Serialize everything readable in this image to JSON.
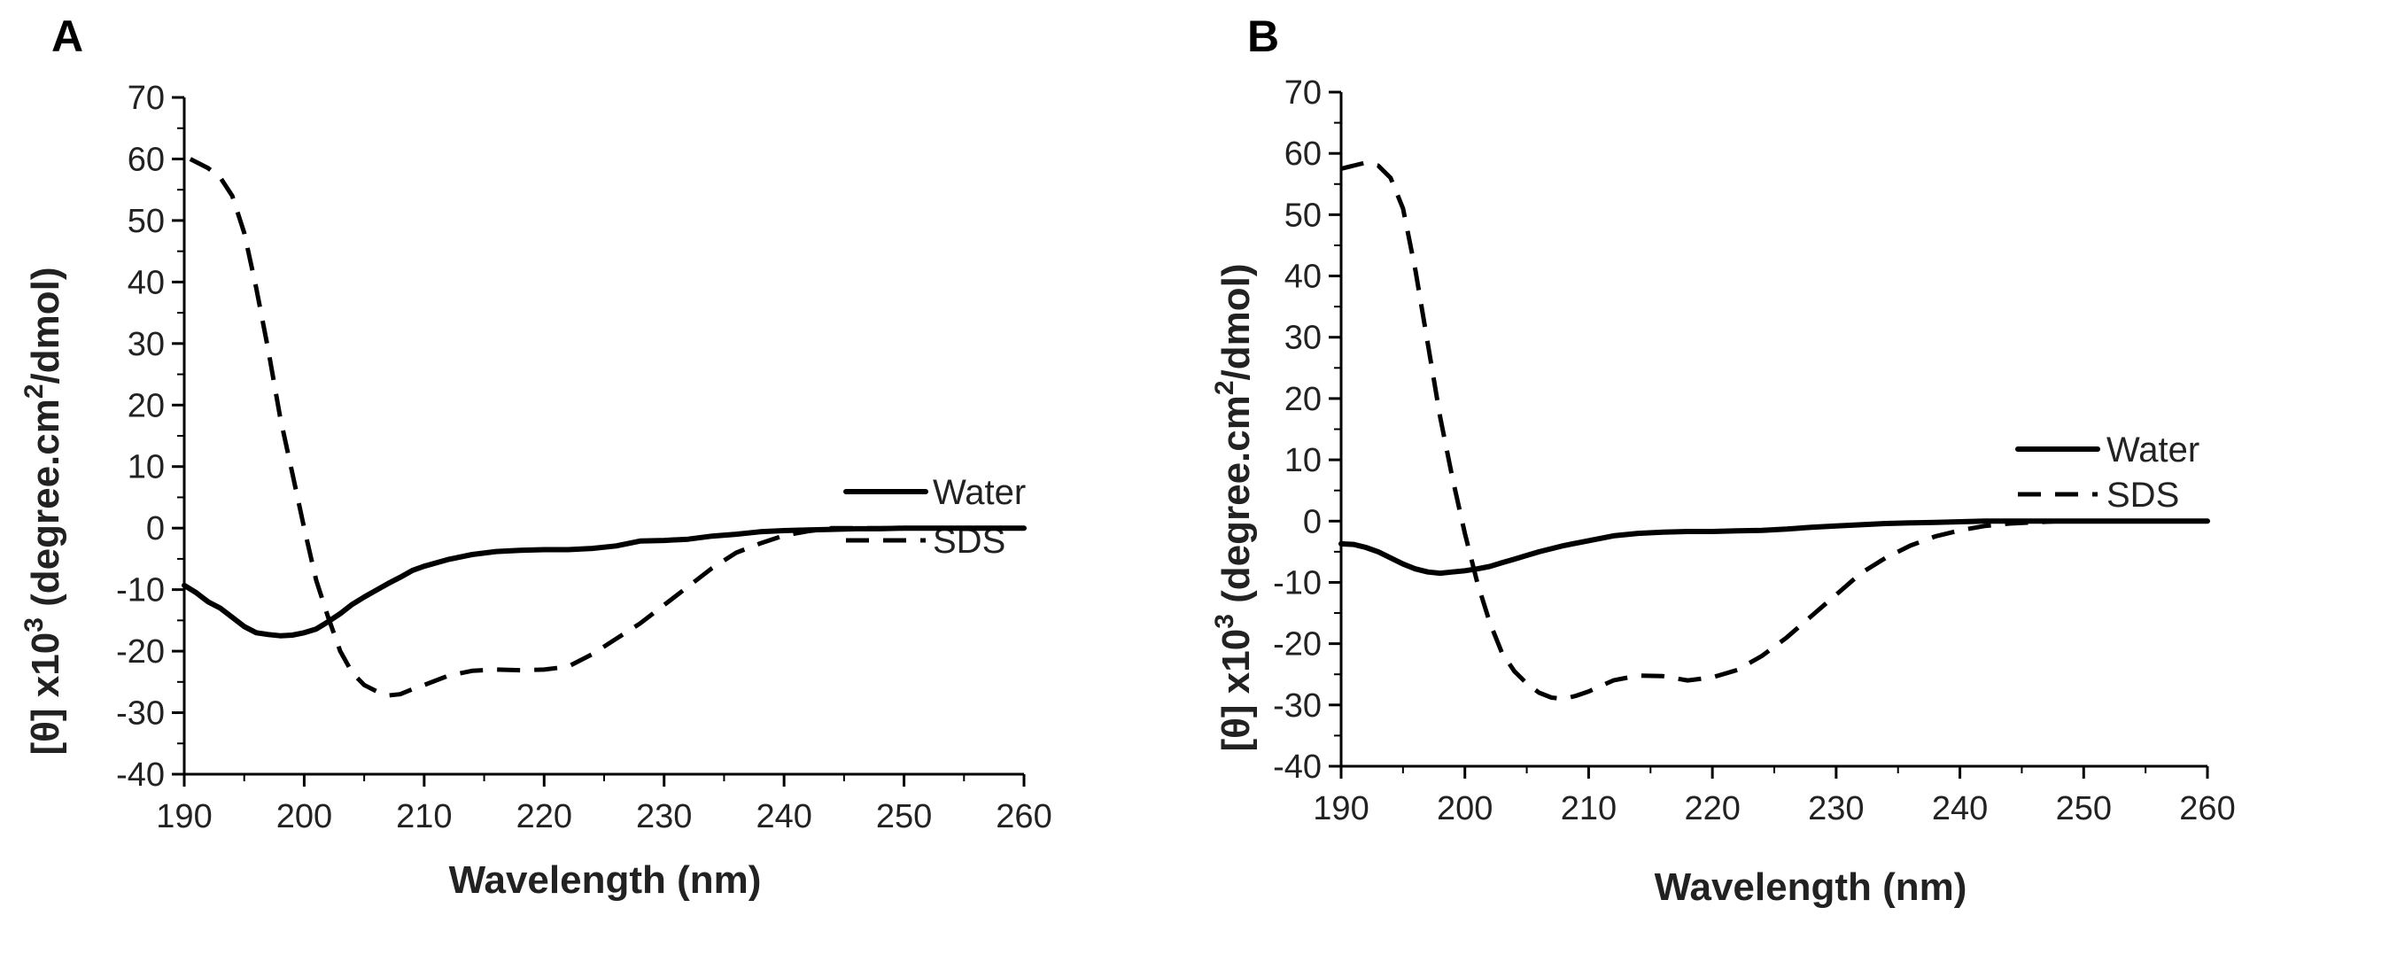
{
  "chart_data": [
    {
      "panel": "A",
      "type": "line",
      "title": "",
      "xlabel": "Wavelength  (nm)",
      "ylabel_main": "[θ] x10",
      "ylabel_sup": "3",
      "ylabel_units": " (degree.cm",
      "ylabel_units_sup": "2",
      "ylabel_units_end": "/dmol)",
      "xlim": [
        190,
        260
      ],
      "ylim": [
        -40,
        70
      ],
      "xticks": [
        190,
        200,
        210,
        220,
        230,
        240,
        250,
        260
      ],
      "yticks": [
        -40,
        -30,
        -20,
        -10,
        0,
        10,
        20,
        30,
        40,
        50,
        60,
        70
      ],
      "legend": [
        "Water",
        "SDS"
      ],
      "series": [
        {
          "name": "Water",
          "style": "solid",
          "x": [
            190,
            191,
            192,
            193,
            194,
            195,
            196,
            197,
            198,
            199,
            200,
            201,
            202,
            203,
            204,
            205,
            206,
            207,
            208,
            209,
            210,
            212,
            214,
            216,
            218,
            220,
            222,
            224,
            226,
            228,
            230,
            232,
            234,
            236,
            238,
            240,
            242,
            244,
            246,
            248,
            250,
            252,
            254,
            256,
            258,
            260
          ],
          "y": [
            -9.3,
            -10.5,
            -12,
            -13,
            -14.5,
            -16,
            -17,
            -17.3,
            -17.5,
            -17.4,
            -17,
            -16.4,
            -15.2,
            -13.9,
            -12.4,
            -11.2,
            -10.1,
            -9,
            -8,
            -6.9,
            -6.2,
            -5.1,
            -4.3,
            -3.8,
            -3.6,
            -3.5,
            -3.5,
            -3.3,
            -2.9,
            -2.1,
            -2,
            -1.8,
            -1.3,
            -1,
            -0.6,
            -0.4,
            -0.3,
            -0.2,
            -0.1,
            -0.1,
            0,
            0,
            0,
            0,
            0,
            0
          ]
        },
        {
          "name": "SDS",
          "style": "dashed",
          "x": [
            190.5,
            192,
            193,
            194,
            195,
            196,
            197,
            198,
            199,
            200,
            201,
            202,
            203,
            204,
            205,
            206,
            207,
            208,
            209,
            210,
            212,
            214,
            216,
            218,
            220,
            222,
            224,
            226,
            228,
            230,
            232,
            234,
            236,
            238,
            240,
            242,
            244,
            246,
            248,
            250
          ],
          "y": [
            60,
            58.5,
            57,
            54,
            48,
            39,
            29,
            18,
            9,
            0,
            -8.5,
            -14.5,
            -20,
            -23.5,
            -25.5,
            -26.5,
            -27.2,
            -27,
            -26.2,
            -25.5,
            -24,
            -23.2,
            -23,
            -23.1,
            -23,
            -22.5,
            -20.5,
            -18,
            -15.5,
            -12.5,
            -9.5,
            -6.5,
            -4,
            -2.5,
            -1.2,
            -0.5,
            0,
            0,
            0,
            0
          ]
        }
      ]
    },
    {
      "panel": "B",
      "type": "line",
      "title": "",
      "xlabel": "Wavelength  (nm)",
      "ylabel_main": "[θ] x10",
      "ylabel_sup": "3",
      "ylabel_units": " (degree.cm",
      "ylabel_units_sup": "2",
      "ylabel_units_end": "/dmol)",
      "xlim": [
        190,
        260
      ],
      "ylim": [
        -40,
        70
      ],
      "xticks": [
        190,
        200,
        210,
        220,
        230,
        240,
        250,
        260
      ],
      "yticks": [
        -40,
        -30,
        -20,
        -10,
        0,
        10,
        20,
        30,
        40,
        50,
        60,
        70
      ],
      "legend": [
        "Water",
        "SDS"
      ],
      "series": [
        {
          "name": "Water",
          "style": "solid",
          "x": [
            190,
            191,
            192,
            193,
            194,
            195,
            196,
            197,
            198,
            199,
            200,
            201,
            202,
            203,
            204,
            205,
            206,
            208,
            210,
            212,
            214,
            216,
            218,
            220,
            222,
            224,
            226,
            228,
            230,
            232,
            234,
            236,
            238,
            240,
            242,
            244,
            246,
            248,
            250,
            252,
            254,
            256,
            258,
            260
          ],
          "y": [
            -3.7,
            -3.8,
            -4.3,
            -5,
            -6,
            -7,
            -7.8,
            -8.3,
            -8.5,
            -8.3,
            -8.1,
            -7.8,
            -7.4,
            -6.8,
            -6.2,
            -5.6,
            -5,
            -4,
            -3.2,
            -2.4,
            -2,
            -1.8,
            -1.7,
            -1.7,
            -1.6,
            -1.5,
            -1.3,
            -1,
            -0.8,
            -0.6,
            -0.4,
            -0.3,
            -0.2,
            -0.1,
            0,
            0,
            0,
            0,
            0,
            0,
            0,
            0,
            0,
            0
          ]
        },
        {
          "name": "SDS",
          "style": "dashed",
          "x": [
            190,
            191,
            192,
            193,
            194,
            195,
            196,
            197,
            198,
            199,
            200,
            201,
            202,
            203,
            204,
            205,
            206,
            207,
            208,
            209,
            210,
            212,
            214,
            216,
            218,
            220,
            222,
            224,
            226,
            228,
            230,
            232,
            234,
            236,
            238,
            240,
            242,
            244,
            246,
            248,
            250
          ],
          "y": [
            57.5,
            58,
            58.5,
            58,
            56,
            51,
            41,
            29,
            17,
            7,
            -2,
            -10,
            -16.5,
            -21.5,
            -24.5,
            -26.5,
            -28,
            -28.8,
            -29,
            -28.5,
            -27.8,
            -26,
            -25.2,
            -25.3,
            -26,
            -25.5,
            -24.3,
            -22,
            -19,
            -15.5,
            -12,
            -8.5,
            -6,
            -4,
            -2.5,
            -1.5,
            -0.8,
            -0.4,
            -0.2,
            0,
            0
          ]
        }
      ]
    }
  ]
}
